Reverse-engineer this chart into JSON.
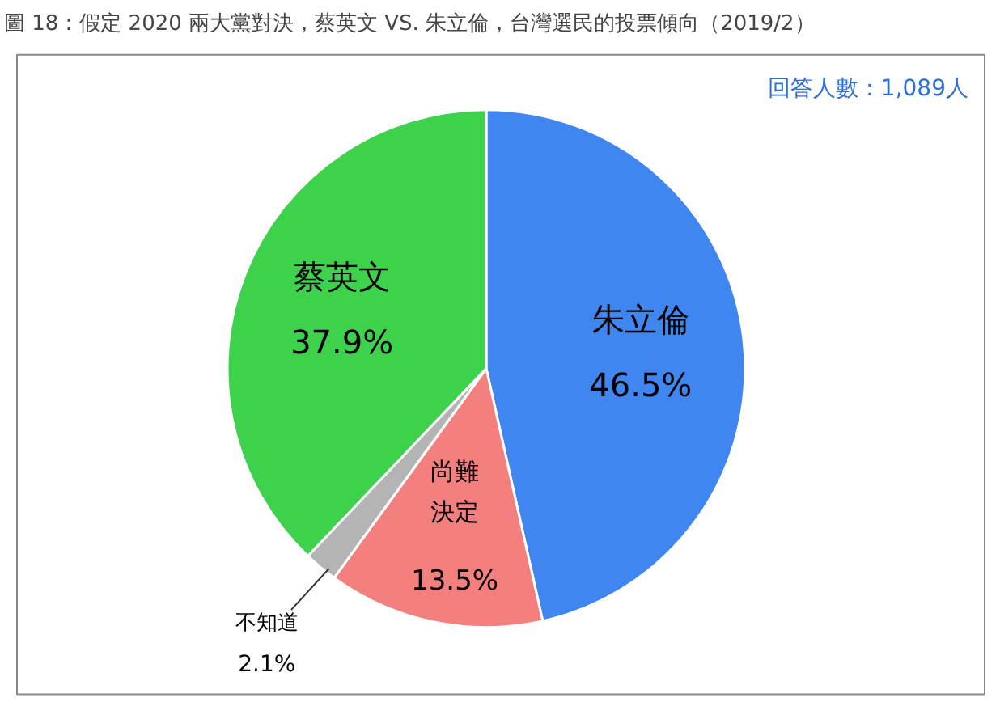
{
  "chart_data": {
    "type": "pie",
    "title": "圖 18：假定 2020 兩大黨對決，蔡英文 VS. 朱立倫，台灣選民的投票傾向（2019/2）",
    "categories": [
      "朱立倫",
      "尚難決定",
      "不知道",
      "蔡英文"
    ],
    "values": [
      46.5,
      13.5,
      2.1,
      37.9
    ],
    "colors": [
      "#3f86f0",
      "#f47f7f",
      "#b4b4b4",
      "#3ed24c"
    ],
    "value_labels": [
      "46.5%",
      "13.5%",
      "2.1%",
      "37.9%"
    ],
    "annotations": [
      "回答人數：1,089人"
    ]
  }
}
